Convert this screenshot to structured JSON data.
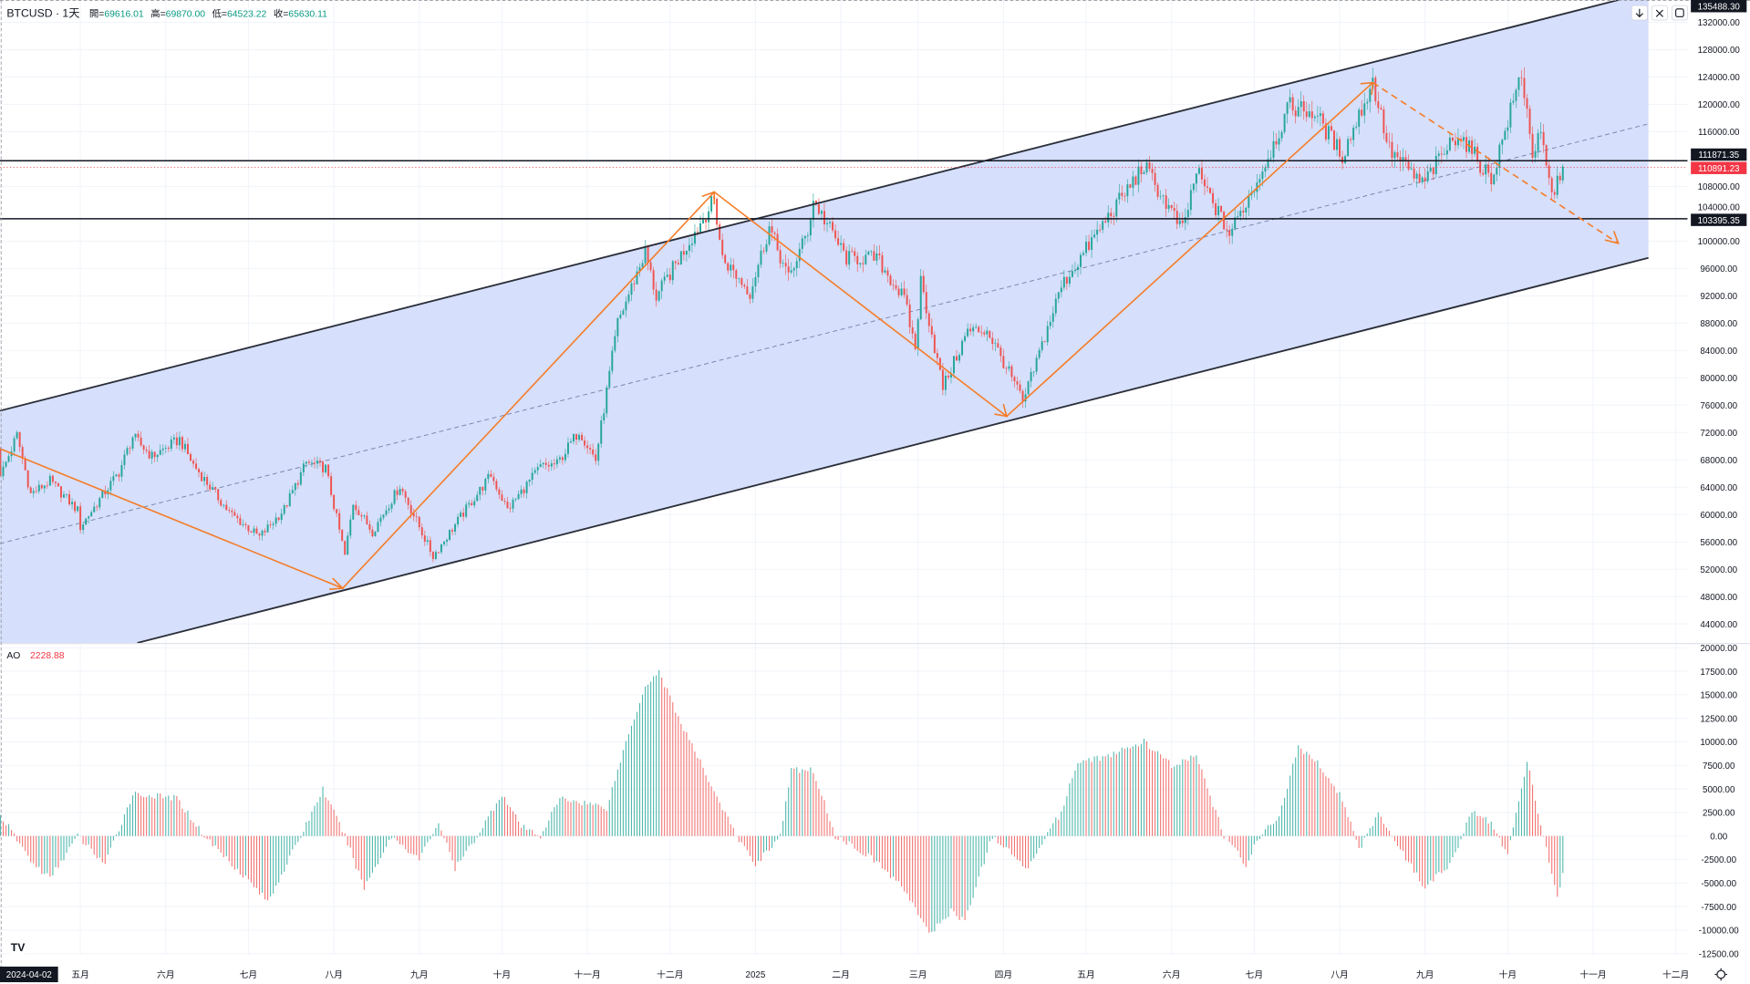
{
  "header": {
    "title": "BTCUSD · 1天",
    "open_label": "開=",
    "open": "69616.01",
    "high_label": "高=",
    "high": "69870.00",
    "low_label": "低=",
    "low": "64523.22",
    "close_label": "收=",
    "close": "65630.11"
  },
  "indicator": {
    "name": "AO",
    "value": "2228.88"
  },
  "crosshair_date": "2024-04-02",
  "price_labels": {
    "top": "135488.30",
    "resistance": "111871.35",
    "last": "110891.23",
    "hidden": "104000.00",
    "support": "103395.35"
  },
  "colors": {
    "up": "#26a69a",
    "down": "#ef5350",
    "channel_fill": "#d6dffb",
    "drawing": "#f57c28",
    "label_dark": "#131722",
    "label_last": "#f23645"
  },
  "icons": [
    "download-arrow-icon",
    "collapse-icon",
    "fullscreen-icon",
    "tradingview-logo-icon",
    "settings-gear-icon"
  ],
  "chart_data": {
    "type": "candlestick",
    "symbol": "BTCUSD",
    "interval": "1天",
    "start_date": "2024-04-02",
    "end_date": "2025-10-21",
    "ylim": [
      40000,
      136000
    ],
    "yticks": [
      "132000.00",
      "128000.00",
      "124000.00",
      "120000.00",
      "116000.00",
      "108000.00",
      "100000.00",
      "96000.00",
      "92000.00",
      "88000.00",
      "84000.00",
      "80000.00",
      "76000.00",
      "72000.00",
      "68000.00",
      "64000.00",
      "60000.00",
      "56000.00",
      "52000.00",
      "48000.00",
      "44000.00"
    ],
    "xticks": [
      {
        "label": "五月",
        "date": "2024-05-01"
      },
      {
        "label": "六月",
        "date": "2024-06-01"
      },
      {
        "label": "七月",
        "date": "2024-07-01"
      },
      {
        "label": "八月",
        "date": "2024-08-01"
      },
      {
        "label": "九月",
        "date": "2024-09-01"
      },
      {
        "label": "十月",
        "date": "2024-10-01"
      },
      {
        "label": "十一月",
        "date": "2024-11-01"
      },
      {
        "label": "十二月",
        "date": "2024-12-01"
      },
      {
        "label": "2025",
        "date": "2025-01-01"
      },
      {
        "label": "二月",
        "date": "2025-02-01"
      },
      {
        "label": "三月",
        "date": "2025-03-01"
      },
      {
        "label": "四月",
        "date": "2025-04-01"
      },
      {
        "label": "五月",
        "date": "2025-05-01"
      },
      {
        "label": "六月",
        "date": "2025-06-01"
      },
      {
        "label": "七月",
        "date": "2025-07-01"
      },
      {
        "label": "八月",
        "date": "2025-08-01"
      },
      {
        "label": "九月",
        "date": "2025-09-01"
      },
      {
        "label": "十月",
        "date": "2025-10-01"
      },
      {
        "label": "十一月",
        "date": "2025-11-01"
      },
      {
        "label": "十二月",
        "date": "2025-12-01"
      }
    ],
    "close_waypoints": [
      [
        "2024-04-02",
        65630
      ],
      [
        "2024-04-08",
        71600
      ],
      [
        "2024-04-13",
        63000
      ],
      [
        "2024-04-20",
        64900
      ],
      [
        "2024-04-30",
        60600
      ],
      [
        "2024-05-01",
        58200
      ],
      [
        "2024-05-15",
        66200
      ],
      [
        "2024-05-20",
        71400
      ],
      [
        "2024-05-27",
        68500
      ],
      [
        "2024-06-06",
        71000
      ],
      [
        "2024-06-11",
        67300
      ],
      [
        "2024-06-24",
        60300
      ],
      [
        "2024-07-05",
        56700
      ],
      [
        "2024-07-14",
        60800
      ],
      [
        "2024-07-22",
        67600
      ],
      [
        "2024-07-29",
        66800
      ],
      [
        "2024-08-05",
        54000
      ],
      [
        "2024-08-08",
        61700
      ],
      [
        "2024-08-15",
        57500
      ],
      [
        "2024-08-25",
        64200
      ],
      [
        "2024-09-06",
        53900
      ],
      [
        "2024-09-15",
        59100
      ],
      [
        "2024-09-27",
        65800
      ],
      [
        "2024-10-03",
        60700
      ],
      [
        "2024-10-15",
        67000
      ],
      [
        "2024-10-21",
        67400
      ],
      [
        "2024-10-29",
        72300
      ],
      [
        "2024-11-04",
        68000
      ],
      [
        "2024-11-12",
        88000
      ],
      [
        "2024-11-22",
        98500
      ],
      [
        "2024-11-26",
        91800
      ],
      [
        "2024-12-05",
        98000
      ],
      [
        "2024-12-17",
        106000
      ],
      [
        "2024-12-20",
        97500
      ],
      [
        "2024-12-30",
        92500
      ],
      [
        "2025-01-06",
        102000
      ],
      [
        "2025-01-13",
        94500
      ],
      [
        "2025-01-20",
        101500
      ],
      [
        "2025-01-22",
        106000
      ],
      [
        "2025-02-03",
        97500
      ],
      [
        "2025-02-14",
        97500
      ],
      [
        "2025-02-24",
        91500
      ],
      [
        "2025-02-28",
        84300
      ],
      [
        "2025-03-02",
        94200
      ],
      [
        "2025-03-10",
        78600
      ],
      [
        "2025-03-19",
        86800
      ],
      [
        "2025-03-26",
        87000
      ],
      [
        "2025-04-06",
        78400
      ],
      [
        "2025-04-08",
        76300
      ],
      [
        "2025-04-22",
        93400
      ],
      [
        "2025-05-08",
        103000
      ],
      [
        "2025-05-22",
        111000
      ],
      [
        "2025-06-05",
        101500
      ],
      [
        "2025-06-10",
        110200
      ],
      [
        "2025-06-22",
        101000
      ],
      [
        "2025-07-03",
        109600
      ],
      [
        "2025-07-14",
        119800
      ],
      [
        "2025-07-23",
        118700
      ],
      [
        "2025-08-02",
        112500
      ],
      [
        "2025-08-13",
        123300
      ],
      [
        "2025-08-19",
        113300
      ],
      [
        "2025-08-31",
        108300
      ],
      [
        "2025-09-13",
        115900
      ],
      [
        "2025-09-25",
        109000
      ],
      [
        "2025-10-06",
        124700
      ],
      [
        "2025-10-10",
        113000
      ],
      [
        "2025-10-13",
        115200
      ],
      [
        "2025-10-17",
        106500
      ],
      [
        "2025-10-21",
        110891.23
      ]
    ],
    "ao": {
      "name": "AO",
      "ylim": [
        -12500,
        20000
      ],
      "yticks": [
        "20000.00",
        "17500.00",
        "15000.00",
        "12500.00",
        "10000.00",
        "7500.00",
        "5000.00",
        "2500.00",
        "0.00",
        "-2500.00",
        "-5000.00",
        "-7500.00",
        "-10000.00",
        "-12500.00"
      ],
      "waypoints": [
        [
          "2024-04-02",
          2229
        ],
        [
          "2024-04-14",
          -3000
        ],
        [
          "2024-04-20",
          -4500
        ],
        [
          "2024-04-30",
          0
        ],
        [
          "2024-05-10",
          -3000
        ],
        [
          "2024-05-20",
          4500
        ],
        [
          "2024-06-05",
          4000
        ],
        [
          "2024-06-15",
          0
        ],
        [
          "2024-07-02",
          -5000
        ],
        [
          "2024-07-08",
          -7000
        ],
        [
          "2024-07-20",
          0
        ],
        [
          "2024-07-28",
          5000
        ],
        [
          "2024-08-05",
          0
        ],
        [
          "2024-08-12",
          -5500
        ],
        [
          "2024-08-22",
          0
        ],
        [
          "2024-09-01",
          -2500
        ],
        [
          "2024-09-08",
          1500
        ],
        [
          "2024-09-14",
          -3500
        ],
        [
          "2024-09-22",
          0
        ],
        [
          "2024-10-01",
          4500
        ],
        [
          "2024-10-08",
          1000
        ],
        [
          "2024-10-15",
          0
        ],
        [
          "2024-10-22",
          4000
        ],
        [
          "2024-11-01",
          3500
        ],
        [
          "2024-11-08",
          3000
        ],
        [
          "2024-11-15",
          10000
        ],
        [
          "2024-11-22",
          16000
        ],
        [
          "2024-11-27",
          17500
        ],
        [
          "2024-12-05",
          12000
        ],
        [
          "2024-12-15",
          6000
        ],
        [
          "2024-12-25",
          0
        ],
        [
          "2025-01-01",
          -3000
        ],
        [
          "2025-01-10",
          0
        ],
        [
          "2025-01-14",
          7000
        ],
        [
          "2025-01-22",
          7000
        ],
        [
          "2025-01-30",
          0
        ],
        [
          "2025-02-08",
          -1500
        ],
        [
          "2025-02-15",
          -3000
        ],
        [
          "2025-02-25",
          -6000
        ],
        [
          "2025-03-05",
          -10500
        ],
        [
          "2025-03-13",
          -8000
        ],
        [
          "2025-03-18",
          -9000
        ],
        [
          "2025-03-28",
          0
        ],
        [
          "2025-04-06",
          -2500
        ],
        [
          "2025-04-10",
          -3500
        ],
        [
          "2025-04-16",
          0
        ],
        [
          "2025-04-22",
          2500
        ],
        [
          "2025-04-28",
          8000
        ],
        [
          "2025-05-10",
          8500
        ],
        [
          "2025-05-17",
          9500
        ],
        [
          "2025-05-22",
          10000
        ],
        [
          "2025-06-01",
          7500
        ],
        [
          "2025-06-10",
          8500
        ],
        [
          "2025-06-20",
          0
        ],
        [
          "2025-06-28",
          -3000
        ],
        [
          "2025-07-03",
          0
        ],
        [
          "2025-07-10",
          2000
        ],
        [
          "2025-07-17",
          9500
        ],
        [
          "2025-07-25",
          7500
        ],
        [
          "2025-08-02",
          4000
        ],
        [
          "2025-08-08",
          -1500
        ],
        [
          "2025-08-15",
          2500
        ],
        [
          "2025-08-20",
          0
        ],
        [
          "2025-09-01",
          -5500
        ],
        [
          "2025-09-10",
          -3000
        ],
        [
          "2025-09-18",
          2500
        ],
        [
          "2025-09-25",
          1500
        ],
        [
          "2025-10-01",
          -2000
        ],
        [
          "2025-10-08",
          8000
        ],
        [
          "2025-10-14",
          0
        ],
        [
          "2025-10-19",
          -6500
        ],
        [
          "2025-10-21",
          -4000
        ]
      ]
    }
  }
}
